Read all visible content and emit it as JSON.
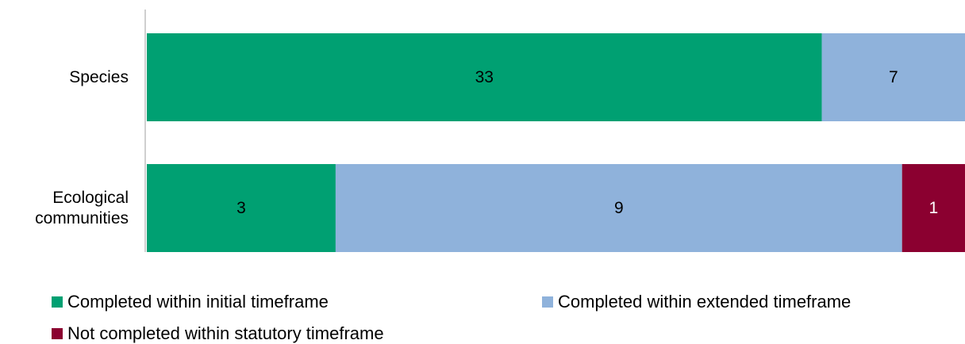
{
  "chart_data": {
    "type": "stacked_bar_100_horizontal",
    "categories": [
      "Species",
      "Ecological communities"
    ],
    "series": [
      {
        "name": "Completed within initial timeframe",
        "color": "#00a072",
        "values": [
          33,
          3
        ]
      },
      {
        "name": "Completed within extended timeframe",
        "color": "#8fb2db",
        "values": [
          7,
          9
        ]
      },
      {
        "name": "Not completed within statutory timeframe",
        "color": "#8b0030",
        "values": [
          null,
          1
        ]
      }
    ],
    "legend": "bottom"
  }
}
